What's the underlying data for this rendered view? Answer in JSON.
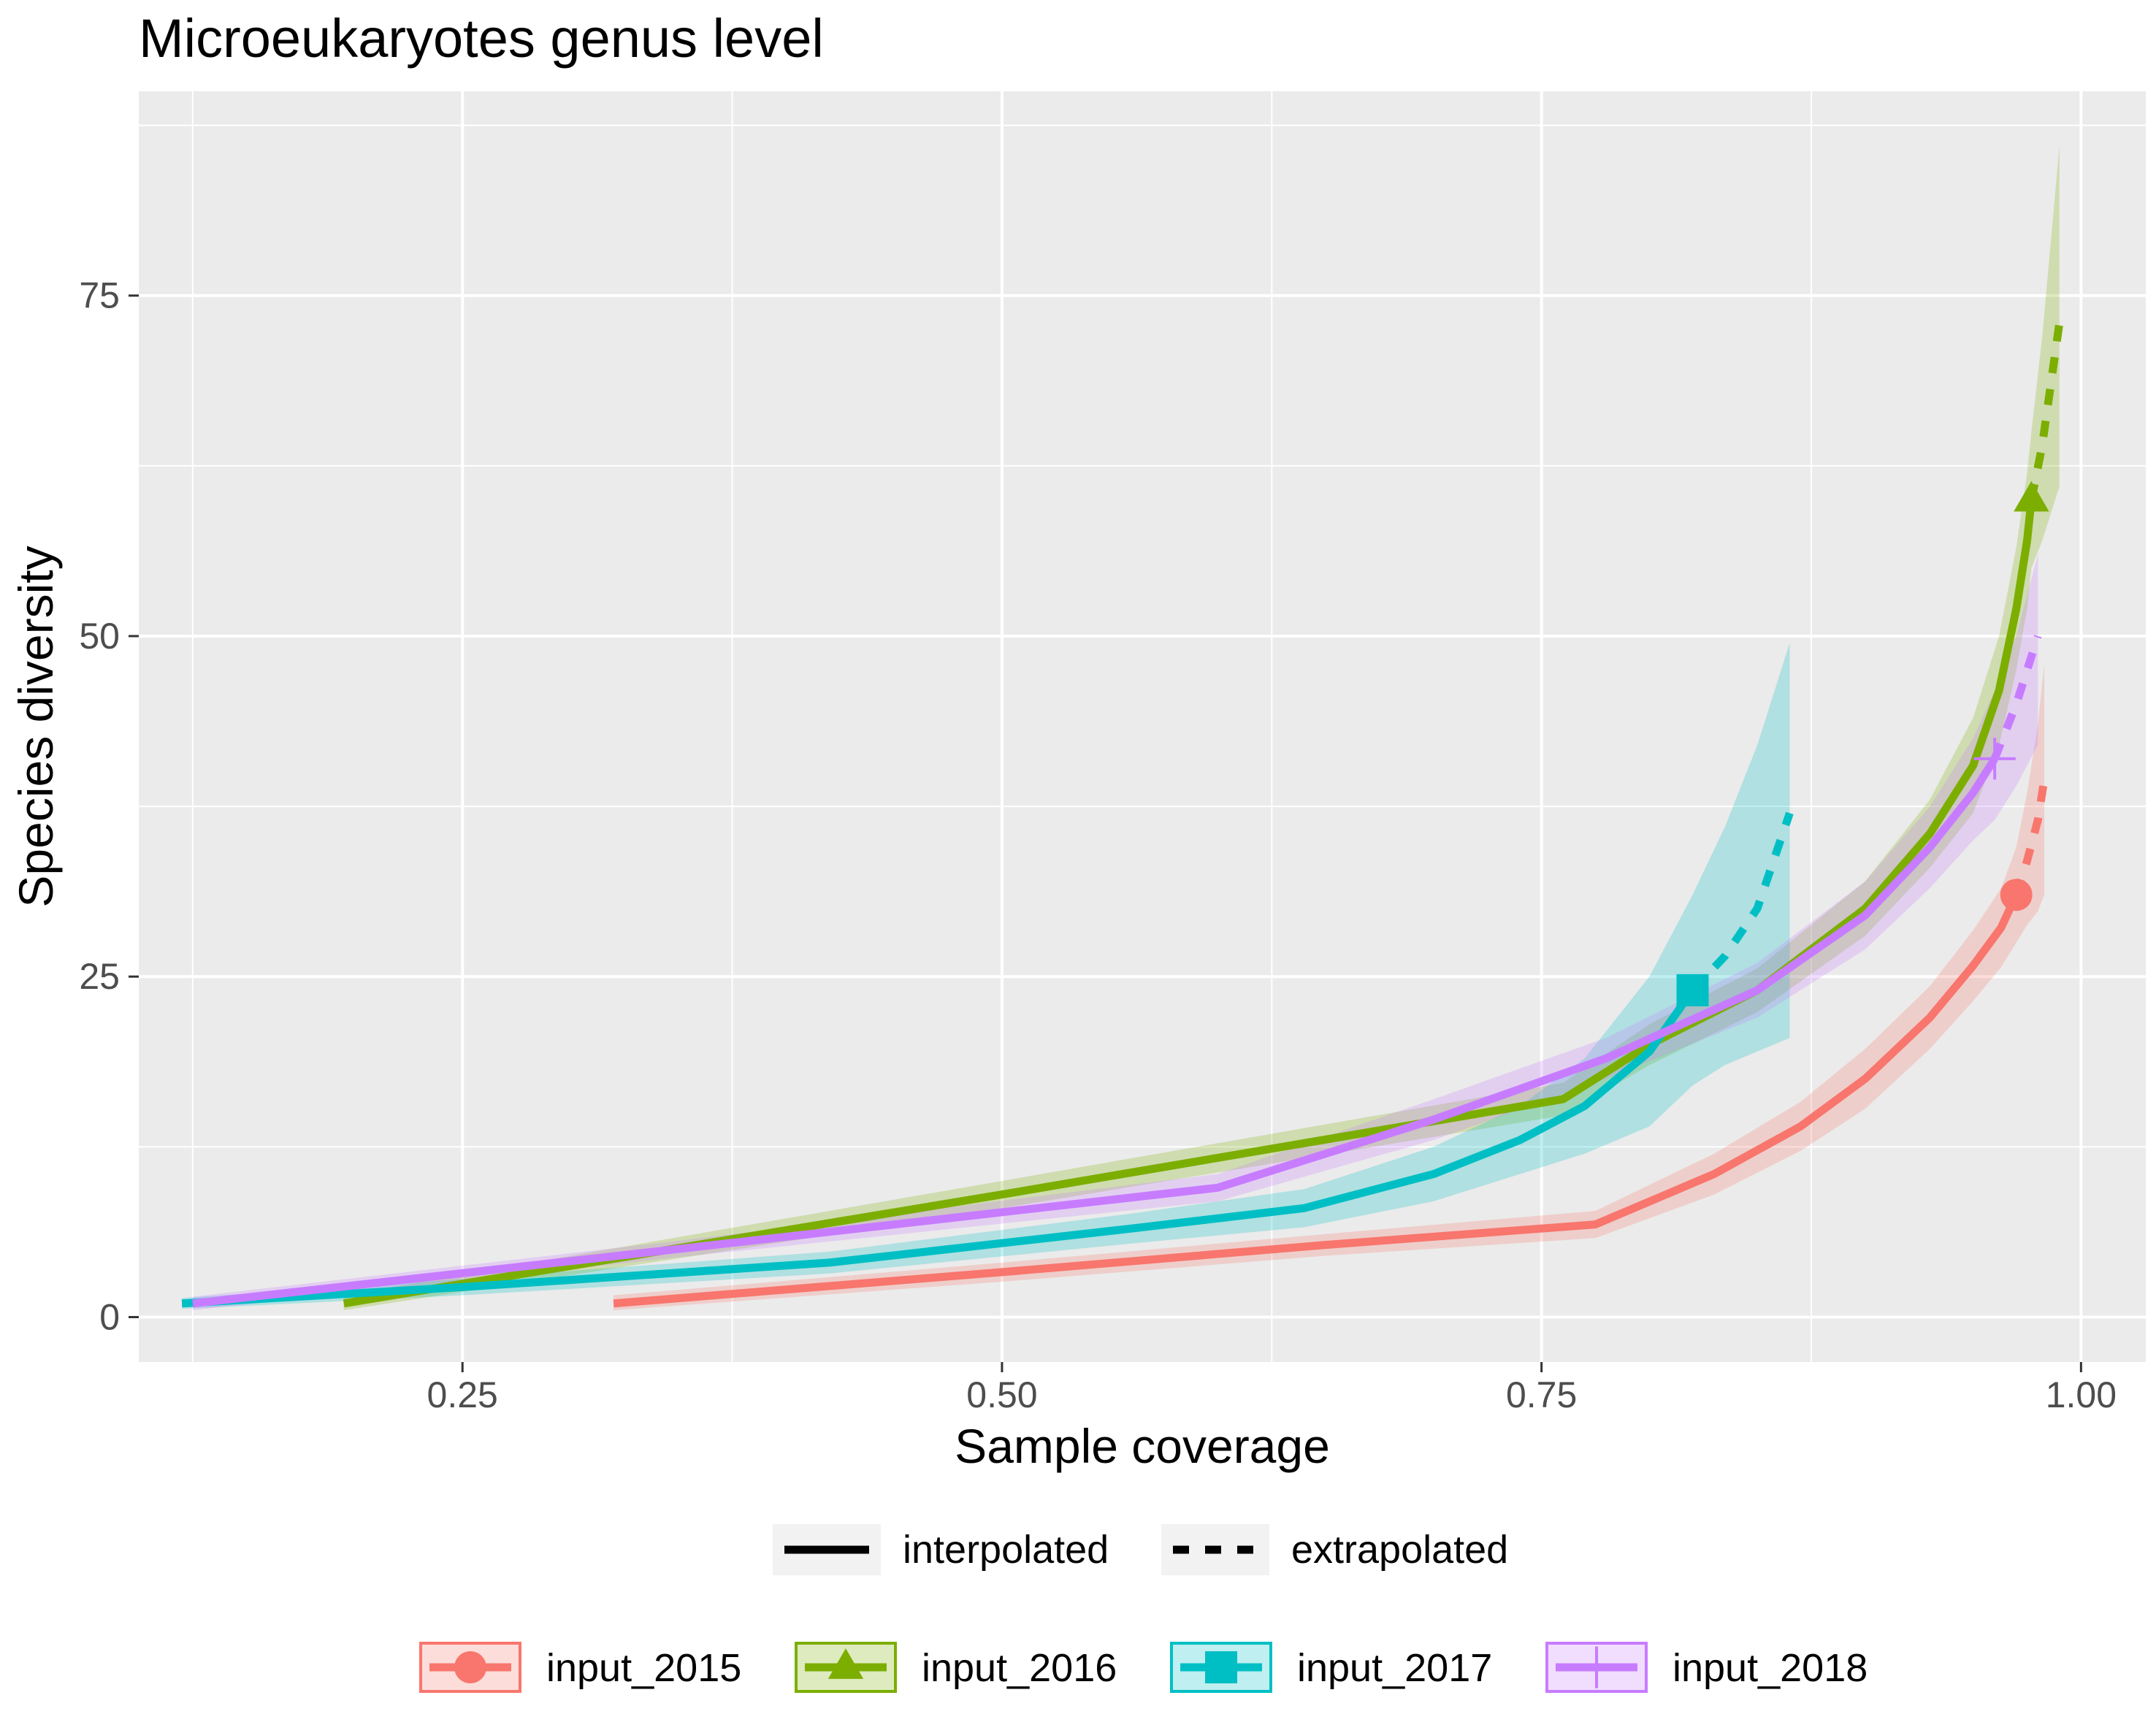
{
  "chart_data": {
    "type": "line",
    "title": "Microeukaryotes genus level",
    "xlabel": "Sample coverage",
    "ylabel": "Species diversity",
    "xlim": [
      0.1,
      1.03
    ],
    "ylim": [
      -3.3,
      90
    ],
    "x_ticks": [
      0.25,
      0.5,
      0.75,
      1.0
    ],
    "x_tick_labels": [
      "0.25",
      "0.50",
      "0.75",
      "1.00"
    ],
    "y_ticks": [
      0,
      25,
      50,
      75
    ],
    "y_tick_labels": [
      "0",
      "25",
      "50",
      "75"
    ],
    "grid": true,
    "legend_position": "bottom",
    "method_legend": [
      {
        "label": "interpolated",
        "dash": "solid"
      },
      {
        "label": "extrapolated",
        "dash": "dashed"
      }
    ],
    "series": [
      {
        "name": "input_2015",
        "color": "#F8766D",
        "marker": "circle",
        "interpolated": [
          [
            0.32,
            1
          ],
          [
            0.5,
            3.3
          ],
          [
            0.65,
            5.3
          ],
          [
            0.775,
            6.8
          ],
          [
            0.83,
            10.5
          ],
          [
            0.87,
            14
          ],
          [
            0.9,
            17.5
          ],
          [
            0.93,
            22
          ],
          [
            0.95,
            25.8
          ],
          [
            0.963,
            28.6
          ],
          [
            0.97,
            31
          ]
        ],
        "extrapolated": [
          [
            0.97,
            31
          ],
          [
            0.975,
            33.5
          ],
          [
            0.98,
            36.5
          ],
          [
            0.983,
            39.5
          ]
        ],
        "ci_upper": [
          [
            0.32,
            1.6
          ],
          [
            0.5,
            4.0
          ],
          [
            0.65,
            6.1
          ],
          [
            0.775,
            7.8
          ],
          [
            0.83,
            12
          ],
          [
            0.87,
            15.8
          ],
          [
            0.9,
            19.7
          ],
          [
            0.93,
            24.3
          ],
          [
            0.95,
            28.4
          ],
          [
            0.963,
            31.5
          ],
          [
            0.97,
            34.5
          ],
          [
            0.975,
            38.5
          ],
          [
            0.98,
            43.5
          ],
          [
            0.983,
            48
          ]
        ],
        "ci_lower": [
          [
            0.32,
            0.5
          ],
          [
            0.5,
            2.6
          ],
          [
            0.65,
            4.5
          ],
          [
            0.775,
            5.8
          ],
          [
            0.83,
            9.0
          ],
          [
            0.87,
            12.2
          ],
          [
            0.9,
            15.3
          ],
          [
            0.93,
            19.7
          ],
          [
            0.95,
            23.2
          ],
          [
            0.963,
            25.7
          ],
          [
            0.97,
            27.5
          ],
          [
            0.975,
            28.8
          ],
          [
            0.98,
            29.8
          ],
          [
            0.983,
            31
          ]
        ],
        "observed_point": [
          0.97,
          31
        ]
      },
      {
        "name": "input_2016",
        "color": "#7CAE00",
        "marker": "triangle",
        "interpolated": [
          [
            0.195,
            1
          ],
          [
            0.5,
            9
          ],
          [
            0.76,
            16
          ],
          [
            0.8,
            20
          ],
          [
            0.85,
            24
          ],
          [
            0.9,
            30
          ],
          [
            0.93,
            35.5
          ],
          [
            0.95,
            40.5
          ],
          [
            0.962,
            46
          ],
          [
            0.97,
            52
          ],
          [
            0.975,
            57
          ],
          [
            0.977,
            60
          ]
        ],
        "extrapolated": [
          [
            0.977,
            60
          ],
          [
            0.982,
            64
          ],
          [
            0.986,
            68.5
          ],
          [
            0.99,
            73
          ]
        ],
        "ci_upper": [
          [
            0.195,
            1.6
          ],
          [
            0.5,
            10
          ],
          [
            0.76,
            17.2
          ],
          [
            0.8,
            21.5
          ],
          [
            0.85,
            25.6
          ],
          [
            0.9,
            32
          ],
          [
            0.93,
            38
          ],
          [
            0.95,
            44
          ],
          [
            0.962,
            50
          ],
          [
            0.97,
            56.5
          ],
          [
            0.975,
            62
          ],
          [
            0.977,
            65
          ],
          [
            0.982,
            72
          ],
          [
            0.986,
            79
          ],
          [
            0.99,
            86
          ]
        ],
        "ci_lower": [
          [
            0.195,
            0.5
          ],
          [
            0.5,
            8
          ],
          [
            0.76,
            14.8
          ],
          [
            0.8,
            18.5
          ],
          [
            0.85,
            22.4
          ],
          [
            0.9,
            28
          ],
          [
            0.93,
            33
          ],
          [
            0.95,
            37
          ],
          [
            0.962,
            42
          ],
          [
            0.97,
            47.5
          ],
          [
            0.975,
            52
          ],
          [
            0.977,
            55
          ],
          [
            0.982,
            57
          ],
          [
            0.986,
            59
          ],
          [
            0.99,
            61
          ]
        ],
        "observed_point": [
          0.977,
          60
        ]
      },
      {
        "name": "input_2017",
        "color": "#00BFC4",
        "marker": "square",
        "interpolated": [
          [
            0.12,
            1
          ],
          [
            0.25,
            2.2
          ],
          [
            0.42,
            4
          ],
          [
            0.56,
            6.5
          ],
          [
            0.64,
            8
          ],
          [
            0.7,
            10.5
          ],
          [
            0.74,
            13
          ],
          [
            0.77,
            15.5
          ],
          [
            0.8,
            19.5
          ],
          [
            0.82,
            24
          ]
        ],
        "extrapolated": [
          [
            0.82,
            24
          ],
          [
            0.835,
            26.5
          ],
          [
            0.85,
            30
          ],
          [
            0.865,
            37
          ]
        ],
        "ci_upper": [
          [
            0.12,
            1.4
          ],
          [
            0.25,
            2.8
          ],
          [
            0.42,
            4.8
          ],
          [
            0.56,
            7.6
          ],
          [
            0.64,
            9.4
          ],
          [
            0.7,
            12.5
          ],
          [
            0.74,
            15.5
          ],
          [
            0.77,
            19
          ],
          [
            0.8,
            25
          ],
          [
            0.82,
            31
          ],
          [
            0.835,
            36
          ],
          [
            0.85,
            42
          ],
          [
            0.865,
            49.5
          ]
        ],
        "ci_lower": [
          [
            0.12,
            0.6
          ],
          [
            0.25,
            1.6
          ],
          [
            0.42,
            3.2
          ],
          [
            0.56,
            5.4
          ],
          [
            0.64,
            6.6
          ],
          [
            0.7,
            8.5
          ],
          [
            0.74,
            10.5
          ],
          [
            0.77,
            12
          ],
          [
            0.8,
            14
          ],
          [
            0.82,
            17
          ],
          [
            0.835,
            18.5
          ],
          [
            0.85,
            19.5
          ],
          [
            0.865,
            20.5
          ]
        ],
        "observed_point": [
          0.82,
          24
        ]
      },
      {
        "name": "input_2018",
        "color": "#C77CFF",
        "marker": "cross",
        "interpolated": [
          [
            0.125,
            1
          ],
          [
            0.35,
            5
          ],
          [
            0.6,
            9.5
          ],
          [
            0.7,
            14.5
          ],
          [
            0.78,
            19
          ],
          [
            0.85,
            24
          ],
          [
            0.9,
            29.5
          ],
          [
            0.93,
            34.5
          ],
          [
            0.95,
            38.5
          ],
          [
            0.96,
            41
          ]
        ],
        "extrapolated": [
          [
            0.96,
            41
          ],
          [
            0.97,
            45
          ],
          [
            0.98,
            50
          ]
        ],
        "ci_upper": [
          [
            0.125,
            1.5
          ],
          [
            0.35,
            5.6
          ],
          [
            0.6,
            10.5
          ],
          [
            0.7,
            16
          ],
          [
            0.78,
            20.5
          ],
          [
            0.85,
            26
          ],
          [
            0.9,
            32
          ],
          [
            0.93,
            37.5
          ],
          [
            0.95,
            42.5
          ],
          [
            0.96,
            46
          ],
          [
            0.97,
            50
          ],
          [
            0.98,
            56
          ]
        ],
        "ci_lower": [
          [
            0.125,
            0.5
          ],
          [
            0.35,
            4.4
          ],
          [
            0.6,
            8.5
          ],
          [
            0.7,
            13
          ],
          [
            0.78,
            17.5
          ],
          [
            0.85,
            22
          ],
          [
            0.9,
            27
          ],
          [
            0.93,
            31.5
          ],
          [
            0.95,
            35
          ],
          [
            0.96,
            36.5
          ],
          [
            0.97,
            39
          ],
          [
            0.98,
            42
          ]
        ],
        "observed_point": [
          0.96,
          41
        ]
      }
    ]
  }
}
